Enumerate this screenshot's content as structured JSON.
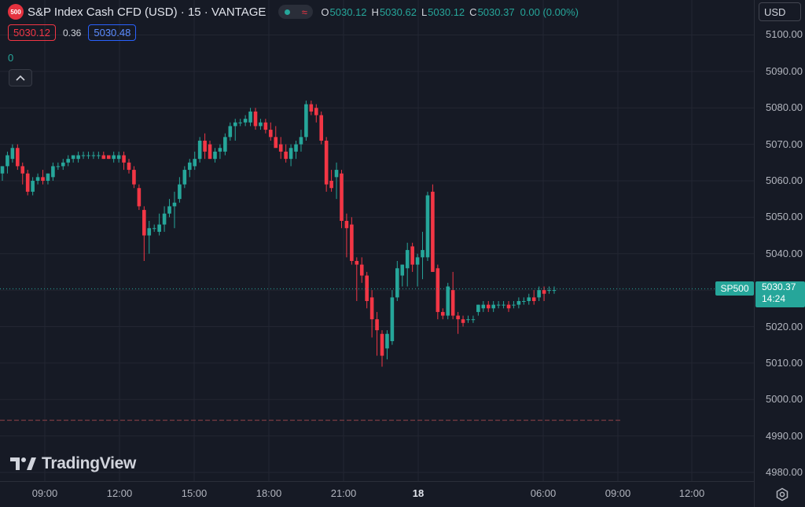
{
  "header": {
    "symbol_badge": "500",
    "title": "S&P Index Cash CFD (USD) · 15 · VANTAGE",
    "status_wave": "≈",
    "open_label": "O",
    "open": "5030.12",
    "high_label": "H",
    "high": "5030.62",
    "low_label": "L",
    "low": "5030.12",
    "close_label": "C",
    "close": "5030.37",
    "change": "0.00 (0.00%)"
  },
  "trade": {
    "bid": "5030.12",
    "spread": "0.36",
    "ask": "5030.48"
  },
  "volume_value": "0",
  "currency": {
    "label": "USD"
  },
  "price_axis": [
    "5100.00",
    "5090.00",
    "5080.00",
    "5070.00",
    "5060.00",
    "5050.00",
    "5040.00",
    "5020.00",
    "5010.00",
    "5000.00",
    "4990.00",
    "4980.00"
  ],
  "time_axis": [
    "09:00",
    "12:00",
    "15:00",
    "18:00",
    "21:00",
    "18",
    "06:00",
    "09:00",
    "12:00"
  ],
  "last_price": {
    "symbol": "SP500",
    "price": "5030.37",
    "countdown": "14:24"
  },
  "logo_text": "TradingView",
  "colors": {
    "background": "#161a25",
    "up": "#26a69a",
    "down": "#f23645",
    "grid": "#232632"
  },
  "chart_data": {
    "type": "candlestick",
    "ylim": [
      4976,
      5104
    ],
    "reference_price": 4994.3,
    "candles": [
      {
        "o": 5062,
        "h": 5064,
        "l": 5060,
        "c": 5064
      },
      {
        "o": 5064,
        "h": 5068,
        "l": 5062,
        "c": 5067
      },
      {
        "o": 5066,
        "h": 5070,
        "l": 5065,
        "c": 5069
      },
      {
        "o": 5069,
        "h": 5070,
        "l": 5063,
        "c": 5064
      },
      {
        "o": 5064,
        "h": 5065,
        "l": 5059,
        "c": 5062
      },
      {
        "o": 5062,
        "h": 5063,
        "l": 5056,
        "c": 5057
      },
      {
        "o": 5057,
        "h": 5061,
        "l": 5056,
        "c": 5060
      },
      {
        "o": 5060,
        "h": 5062,
        "l": 5059,
        "c": 5061
      },
      {
        "o": 5061,
        "h": 5063,
        "l": 5059,
        "c": 5060
      },
      {
        "o": 5060,
        "h": 5062,
        "l": 5059,
        "c": 5062
      },
      {
        "o": 5061,
        "h": 5065,
        "l": 5060,
        "c": 5064
      },
      {
        "o": 5064,
        "h": 5065,
        "l": 5063,
        "c": 5064
      },
      {
        "o": 5064,
        "h": 5066,
        "l": 5063,
        "c": 5065
      },
      {
        "o": 5065,
        "h": 5067,
        "l": 5064,
        "c": 5066
      },
      {
        "o": 5066,
        "h": 5067,
        "l": 5065,
        "c": 5067
      },
      {
        "o": 5066,
        "h": 5068,
        "l": 5065,
        "c": 5067
      },
      {
        "o": 5067,
        "h": 5068,
        "l": 5066,
        "c": 5067
      },
      {
        "o": 5067,
        "h": 5068,
        "l": 5066,
        "c": 5067
      },
      {
        "o": 5067,
        "h": 5068,
        "l": 5066,
        "c": 5067
      },
      {
        "o": 5067,
        "h": 5068,
        "l": 5066,
        "c": 5067
      },
      {
        "o": 5067,
        "h": 5068,
        "l": 5066,
        "c": 5066
      },
      {
        "o": 5067,
        "h": 5067,
        "l": 5066,
        "c": 5066
      },
      {
        "o": 5066,
        "h": 5068,
        "l": 5065,
        "c": 5067
      },
      {
        "o": 5066,
        "h": 5068,
        "l": 5065,
        "c": 5067
      },
      {
        "o": 5067,
        "h": 5068,
        "l": 5063,
        "c": 5065
      },
      {
        "o": 5065,
        "h": 5066,
        "l": 5062,
        "c": 5063
      },
      {
        "o": 5063,
        "h": 5064,
        "l": 5058,
        "c": 5059
      },
      {
        "o": 5058,
        "h": 5059,
        "l": 5052,
        "c": 5053
      },
      {
        "o": 5052,
        "h": 5053,
        "l": 5038,
        "c": 5045
      },
      {
        "o": 5045,
        "h": 5049,
        "l": 5040,
        "c": 5047
      },
      {
        "o": 5047,
        "h": 5048,
        "l": 5046,
        "c": 5047
      },
      {
        "o": 5046,
        "h": 5051,
        "l": 5045,
        "c": 5048
      },
      {
        "o": 5048,
        "h": 5053,
        "l": 5046,
        "c": 5051
      },
      {
        "o": 5051,
        "h": 5055,
        "l": 5050,
        "c": 5053
      },
      {
        "o": 5053,
        "h": 5057,
        "l": 5047,
        "c": 5054
      },
      {
        "o": 5055,
        "h": 5061,
        "l": 5054,
        "c": 5059
      },
      {
        "o": 5059,
        "h": 5064,
        "l": 5058,
        "c": 5063
      },
      {
        "o": 5063,
        "h": 5066,
        "l": 5061,
        "c": 5065
      },
      {
        "o": 5064,
        "h": 5068,
        "l": 5063,
        "c": 5066
      },
      {
        "o": 5066,
        "h": 5072,
        "l": 5065,
        "c": 5071
      },
      {
        "o": 5071,
        "h": 5073,
        "l": 5066,
        "c": 5068
      },
      {
        "o": 5070,
        "h": 5071,
        "l": 5066,
        "c": 5066
      },
      {
        "o": 5066,
        "h": 5069,
        "l": 5065,
        "c": 5068
      },
      {
        "o": 5068,
        "h": 5070,
        "l": 5066,
        "c": 5069
      },
      {
        "o": 5068,
        "h": 5073,
        "l": 5067,
        "c": 5072
      },
      {
        "o": 5072,
        "h": 5076,
        "l": 5071,
        "c": 5075
      },
      {
        "o": 5075,
        "h": 5077,
        "l": 5071,
        "c": 5076
      },
      {
        "o": 5076,
        "h": 5077,
        "l": 5075,
        "c": 5076
      },
      {
        "o": 5076,
        "h": 5078,
        "l": 5075,
        "c": 5077
      },
      {
        "o": 5076,
        "h": 5080,
        "l": 5075,
        "c": 5079
      },
      {
        "o": 5079,
        "h": 5080,
        "l": 5074,
        "c": 5075
      },
      {
        "o": 5075,
        "h": 5077,
        "l": 5074,
        "c": 5076
      },
      {
        "o": 5076,
        "h": 5077,
        "l": 5073,
        "c": 5074
      },
      {
        "o": 5074,
        "h": 5076,
        "l": 5071,
        "c": 5072
      },
      {
        "o": 5072,
        "h": 5075,
        "l": 5070,
        "c": 5069
      },
      {
        "o": 5070,
        "h": 5072,
        "l": 5066,
        "c": 5068
      },
      {
        "o": 5068,
        "h": 5070,
        "l": 5065,
        "c": 5066
      },
      {
        "o": 5066,
        "h": 5070,
        "l": 5064,
        "c": 5069
      },
      {
        "o": 5068,
        "h": 5071,
        "l": 5066,
        "c": 5070
      },
      {
        "o": 5070,
        "h": 5074,
        "l": 5068,
        "c": 5072
      },
      {
        "o": 5072,
        "h": 5082,
        "l": 5071,
        "c": 5081
      },
      {
        "o": 5081,
        "h": 5082,
        "l": 5078,
        "c": 5079
      },
      {
        "o": 5080,
        "h": 5081,
        "l": 5076,
        "c": 5078
      },
      {
        "o": 5078,
        "h": 5079,
        "l": 5070,
        "c": 5071
      },
      {
        "o": 5071,
        "h": 5072,
        "l": 5057,
        "c": 5059
      },
      {
        "o": 5060,
        "h": 5063,
        "l": 5057,
        "c": 5058
      },
      {
        "o": 5061,
        "h": 5065,
        "l": 5055,
        "c": 5063
      },
      {
        "o": 5062,
        "h": 5063,
        "l": 5047,
        "c": 5049
      },
      {
        "o": 5049,
        "h": 5051,
        "l": 5039,
        "c": 5047
      },
      {
        "o": 5048,
        "h": 5050,
        "l": 5037,
        "c": 5038
      },
      {
        "o": 5038,
        "h": 5039,
        "l": 5027,
        "c": 5037
      },
      {
        "o": 5037,
        "h": 5039,
        "l": 5032,
        "c": 5034
      },
      {
        "o": 5034,
        "h": 5035,
        "l": 5025,
        "c": 5027
      },
      {
        "o": 5028,
        "h": 5030,
        "l": 5017,
        "c": 5022
      },
      {
        "o": 5022,
        "h": 5024,
        "l": 5012,
        "c": 5019
      },
      {
        "o": 5018,
        "h": 5019,
        "l": 5009,
        "c": 5012
      },
      {
        "o": 5014,
        "h": 5019,
        "l": 5011,
        "c": 5018
      },
      {
        "o": 5016,
        "h": 5030,
        "l": 5015,
        "c": 5028
      },
      {
        "o": 5028,
        "h": 5038,
        "l": 5027,
        "c": 5036
      },
      {
        "o": 5034,
        "h": 5037,
        "l": 5031,
        "c": 5037
      },
      {
        "o": 5036,
        "h": 5043,
        "l": 5031,
        "c": 5041
      },
      {
        "o": 5042,
        "h": 5043,
        "l": 5035,
        "c": 5037
      },
      {
        "o": 5037,
        "h": 5040,
        "l": 5031,
        "c": 5039
      },
      {
        "o": 5039,
        "h": 5046,
        "l": 5033,
        "c": 5041
      },
      {
        "o": 5039,
        "h": 5057,
        "l": 5038,
        "c": 5056
      },
      {
        "o": 5057,
        "h": 5059,
        "l": 5035,
        "c": 5035
      },
      {
        "o": 5036,
        "h": 5037,
        "l": 5022,
        "c": 5024
      },
      {
        "o": 5024,
        "h": 5025,
        "l": 5022,
        "c": 5023
      },
      {
        "o": 5023,
        "h": 5032,
        "l": 5022,
        "c": 5031
      },
      {
        "o": 5030,
        "h": 5035,
        "l": 5022,
        "c": 5023
      },
      {
        "o": 5023,
        "h": 5024,
        "l": 5018,
        "c": 5022
      },
      {
        "o": 5022,
        "h": 5023,
        "l": 5020,
        "c": 5021
      },
      {
        "o": 5022,
        "h": 5023,
        "l": 5021,
        "c": 5022
      },
      {
        "o": 5022,
        "h": 5023,
        "l": 5021,
        "c": 5022
      },
      {
        "o": 5024,
        "h": 5026,
        "l": 5023,
        "c": 5026
      },
      {
        "o": 5025,
        "h": 5027,
        "l": 5024,
        "c": 5026
      },
      {
        "o": 5026,
        "h": 5027,
        "l": 5024,
        "c": 5025
      },
      {
        "o": 5025,
        "h": 5027,
        "l": 5024,
        "c": 5026
      },
      {
        "o": 5026,
        "h": 5027,
        "l": 5025,
        "c": 5026
      },
      {
        "o": 5026,
        "h": 5027,
        "l": 5025,
        "c": 5026
      },
      {
        "o": 5026,
        "h": 5027,
        "l": 5024,
        "c": 5025
      },
      {
        "o": 5026,
        "h": 5027,
        "l": 5025,
        "c": 5026
      },
      {
        "o": 5026,
        "h": 5028,
        "l": 5025,
        "c": 5027
      },
      {
        "o": 5027,
        "h": 5028,
        "l": 5026,
        "c": 5027
      },
      {
        "o": 5027,
        "h": 5029,
        "l": 5026,
        "c": 5028
      },
      {
        "o": 5028,
        "h": 5030,
        "l": 5026,
        "c": 5027
      },
      {
        "o": 5028,
        "h": 5031,
        "l": 5027,
        "c": 5030
      },
      {
        "o": 5030,
        "h": 5031,
        "l": 5027,
        "c": 5029
      },
      {
        "o": 5030,
        "h": 5031,
        "l": 5029,
        "c": 5030
      },
      {
        "o": 5030,
        "h": 5031,
        "l": 5029,
        "c": 5030
      }
    ]
  }
}
